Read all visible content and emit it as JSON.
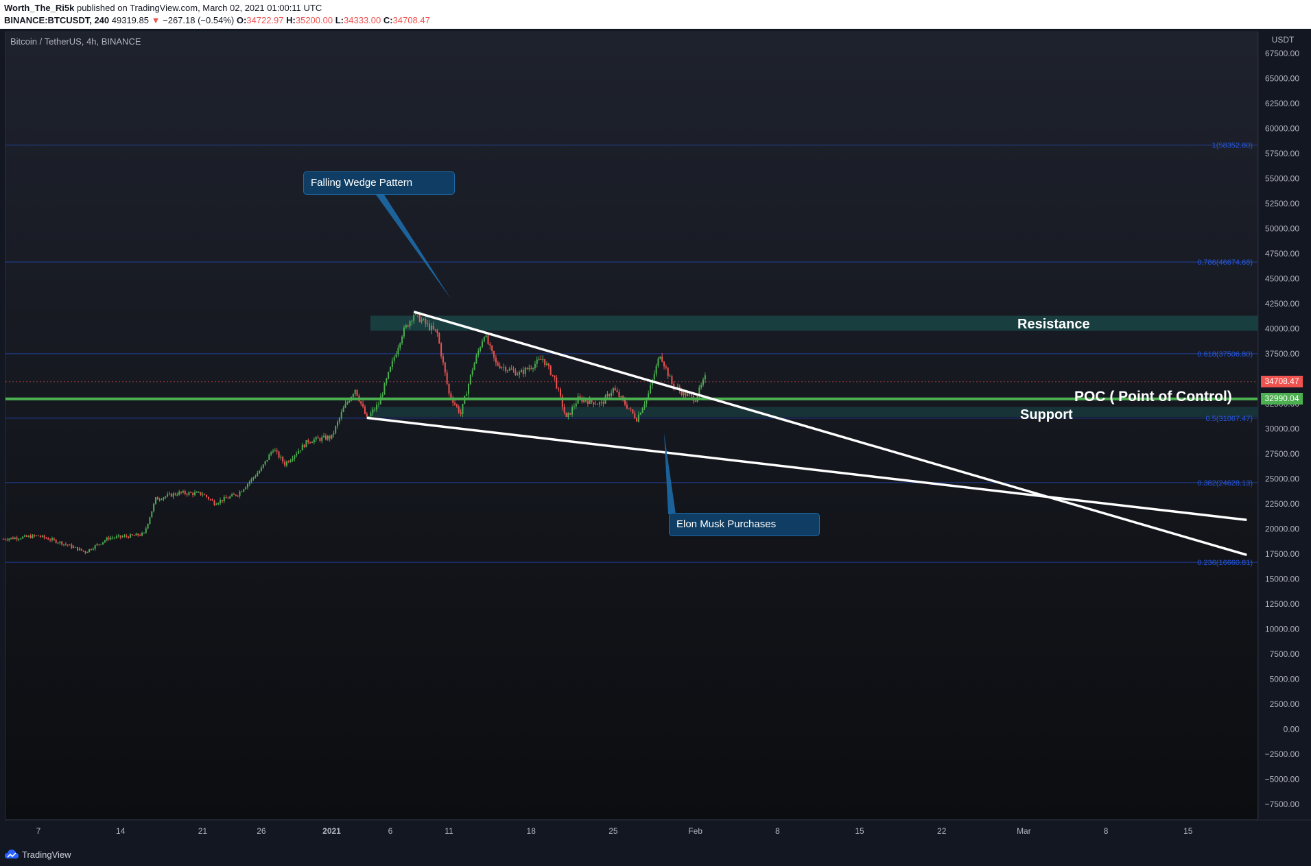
{
  "header": {
    "author": "Worth_The_Ri5k",
    "published": "published on TradingView.com, March 02, 2021 01:00:11 UTC",
    "symbol": "BINANCE:BTCUSDT, 240",
    "last": "49319.85",
    "change_arrow": "▼",
    "change": "−267.18 (−0.54%)",
    "o_label": "O:",
    "o": "34722.97",
    "h_label": "H:",
    "h": "35200.00",
    "l_label": "L:",
    "l": "34333.00",
    "c_label": "C:",
    "c": "34708.47"
  },
  "chart_title": "Bitcoin / TetherUS, 4h, BINANCE",
  "footer": {
    "brand": "TradingView"
  },
  "colors": {
    "up": "#26a69a",
    "down": "#ef5350",
    "poc": "#4caf50",
    "fib": "#2962ff",
    "callout": "#0f3d63",
    "zone": "#1b4b4b"
  },
  "annotations": {
    "falling_wedge": "Falling Wedge Pattern",
    "elon": "Elon Musk Purchases",
    "resistance": "Resistance",
    "support": "Support",
    "poc": "POC ( Point of Control)"
  },
  "chart_data": {
    "type": "candlestick",
    "title": "Bitcoin / TetherUS, 4h, BINANCE",
    "y_unit": "USDT",
    "ylim": [
      -9000,
      69000
    ],
    "x_ticks": [
      "7",
      "14",
      "21",
      "26",
      "2021",
      "6",
      "11",
      "18",
      "25",
      "Feb",
      "8",
      "15",
      "22",
      "Mar",
      "8",
      "15"
    ],
    "x_tick_dates": [
      "2020-12-07",
      "2020-12-14",
      "2020-12-21",
      "2020-12-26",
      "2021-01-01",
      "2021-01-06",
      "2021-01-11",
      "2021-01-18",
      "2021-01-25",
      "2021-02-01",
      "2021-02-08",
      "2021-02-15",
      "2021-02-22",
      "2021-03-01",
      "2021-03-08",
      "2021-03-15"
    ],
    "x_range": [
      "2020-12-04",
      "2021-03-20"
    ],
    "y_ticks": [
      67500,
      65000,
      62500,
      60000,
      57500,
      55000,
      52500,
      50000,
      47500,
      45000,
      42500,
      40000,
      37500,
      35000,
      32500,
      30000,
      27500,
      25000,
      22500,
      20000,
      17500,
      15000,
      12500,
      10000,
      7500,
      5000,
      2500,
      0,
      -2500,
      -5000,
      -7500
    ],
    "y_tick_labels": [
      "67500.00",
      "65000.00",
      "62500.00",
      "60000.00",
      "57500.00",
      "55000.00",
      "52500.00",
      "50000.00",
      "47500.00",
      "45000.00",
      "42500.00",
      "40000.00",
      "37500.00",
      "35000.00",
      "32500.00",
      "30000.00",
      "27500.00",
      "25000.00",
      "22500.00",
      "20000.00",
      "17500.00",
      "15000.00",
      "12500.00",
      "10000.00",
      "7500.00",
      "5000.00",
      "2500.00",
      "0.00",
      "−2500.00",
      "−5000.00",
      "−7500.00"
    ],
    "fib_levels": [
      {
        "label": "1(58352.80)",
        "value": 58352.8
      },
      {
        "label": "0.786(46674.68)",
        "value": 46674.68
      },
      {
        "label": "0.618(37506.80)",
        "value": 37506.8
      },
      {
        "label": "0.5(31067.47)",
        "value": 31067.47
      },
      {
        "label": "0.382(24628.13)",
        "value": 24628.13
      },
      {
        "label": "0.236(16660.81)",
        "value": 16660.81
      }
    ],
    "last_price": {
      "value": 34708.47,
      "label": "34708.47"
    },
    "poc_price": {
      "value": 32990.04,
      "label": "32990.04"
    },
    "resistance_zone": [
      39800,
      41300
    ],
    "support_zone": [
      31200,
      32200
    ],
    "wedge_upper": {
      "from": [
        "2021-01-08",
        41700
      ],
      "to": [
        "2021-03-20",
        17400
      ]
    },
    "wedge_lower": {
      "from": [
        "2021-01-04",
        31100
      ],
      "to": [
        "2021-03-20",
        20900
      ]
    },
    "price_path": [
      [
        "2020-12-04",
        19000
      ],
      [
        "2020-12-07",
        19300
      ],
      [
        "2020-12-09",
        18600
      ],
      [
        "2020-12-11",
        17700
      ],
      [
        "2020-12-13",
        19100
      ],
      [
        "2020-12-15",
        19300
      ],
      [
        "2020-12-16",
        19500
      ],
      [
        "2020-12-17",
        23000
      ],
      [
        "2020-12-19",
        23600
      ],
      [
        "2020-12-21",
        23500
      ],
      [
        "2020-12-22",
        22600
      ],
      [
        "2020-12-24",
        23500
      ],
      [
        "2020-12-26",
        26000
      ],
      [
        "2020-12-27",
        28000
      ],
      [
        "2020-12-28",
        26500
      ],
      [
        "2020-12-30",
        28800
      ],
      [
        "2021-01-01",
        29200
      ],
      [
        "2021-01-02",
        32000
      ],
      [
        "2021-01-03",
        34000
      ],
      [
        "2021-01-04",
        31000
      ],
      [
        "2021-01-05",
        32500
      ],
      [
        "2021-01-06",
        36000
      ],
      [
        "2021-01-07",
        39500
      ],
      [
        "2021-01-08",
        41500
      ],
      [
        "2021-01-09",
        40500
      ],
      [
        "2021-01-10",
        39500
      ],
      [
        "2021-01-11",
        33500
      ],
      [
        "2021-01-12",
        31500
      ],
      [
        "2021-01-13",
        36000
      ],
      [
        "2021-01-14",
        39500
      ],
      [
        "2021-01-15",
        36500
      ],
      [
        "2021-01-17",
        35500
      ],
      [
        "2021-01-19",
        37000
      ],
      [
        "2021-01-20",
        35000
      ],
      [
        "2021-01-21",
        31000
      ],
      [
        "2021-01-22",
        33000
      ],
      [
        "2021-01-24",
        32500
      ],
      [
        "2021-01-25",
        34000
      ],
      [
        "2021-01-27",
        31000
      ],
      [
        "2021-01-28",
        33500
      ],
      [
        "2021-01-29",
        37500
      ],
      [
        "2021-01-30",
        34500
      ],
      [
        "2021-01-31",
        33500
      ],
      [
        "2021-02-01",
        33000
      ],
      [
        "2021-02-02",
        35500
      ]
    ]
  }
}
